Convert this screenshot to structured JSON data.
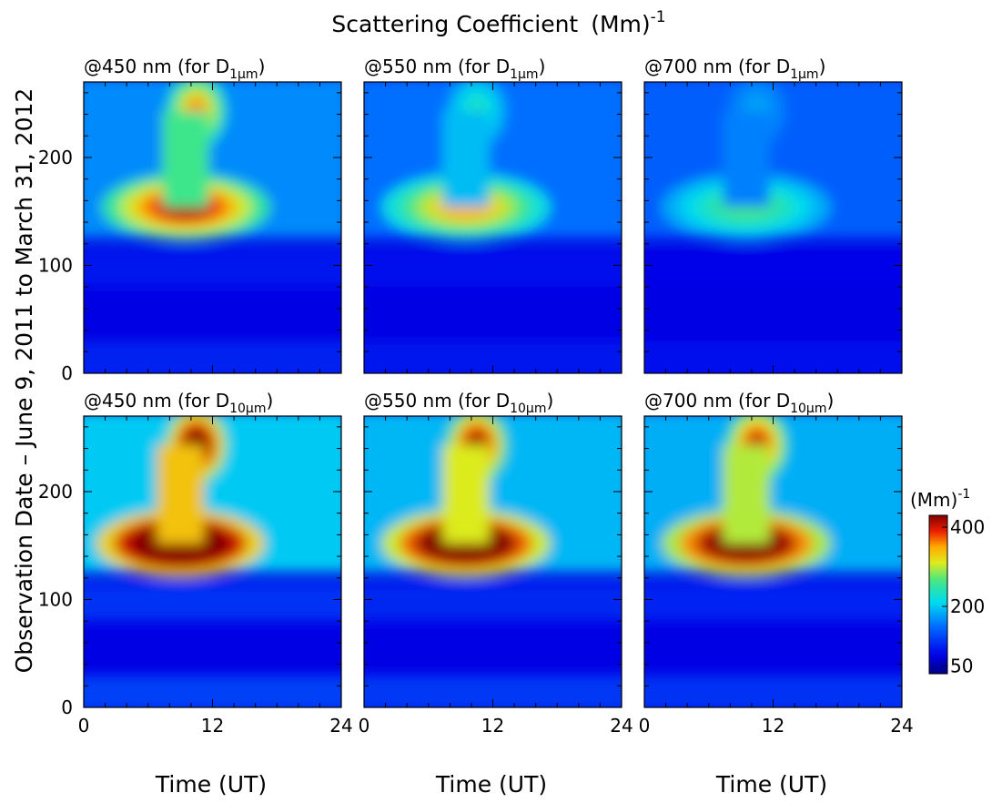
{
  "figure": {
    "title": "Scattering Coefficient",
    "title_unit": "(Mm)",
    "title_unit_sup": "-1",
    "ylabel": "Observation Date  – June 9, 2011 to March 31, 2012",
    "xlabel": "Time (UT)"
  },
  "colorbar": {
    "unit": "(Mm)",
    "unit_sup": "-1",
    "ticks": [
      {
        "value": 400,
        "label": "400"
      },
      {
        "value": 200,
        "label": "200"
      },
      {
        "value": 50,
        "label": "50"
      }
    ],
    "range": [
      30,
      430
    ]
  },
  "chart_data": {
    "type": "heatmap",
    "x": {
      "label": "Time (UT)",
      "range": [
        0,
        24
      ],
      "ticks": [
        0,
        12,
        24
      ],
      "tick_labels_first_col": [
        "0",
        "12",
        "24"
      ],
      "tick_labels_other_cols": [
        "0",
        "12",
        "24"
      ]
    },
    "y": {
      "label": "Observation Date  – June 9, 2011 to March 31, 2012",
      "range": [
        0,
        270
      ],
      "ticks": [
        0,
        100,
        200
      ],
      "tick_labels": [
        "0",
        "100",
        "200"
      ]
    },
    "data_gaps": [
      [
        116,
        124
      ],
      [
        55,
        63
      ]
    ],
    "panels": [
      {
        "row": 0,
        "col": 0,
        "prefix": "@450 nm  (for D",
        "sub": "1μm",
        "suffix": ")",
        "hotspots": [
          {
            "t": 9.5,
            "day": 154,
            "peak": 420
          },
          {
            "t": 10.5,
            "day": 243,
            "peak": 360
          }
        ],
        "background": 165
      },
      {
        "row": 0,
        "col": 1,
        "prefix": "@550 nm  (for D",
        "sub": "1μm",
        "suffix": ")",
        "hotspots": [
          {
            "t": 9.5,
            "day": 154,
            "peak": 350
          },
          {
            "t": 10.5,
            "day": 243,
            "peak": 235
          }
        ],
        "background": 150
      },
      {
        "row": 0,
        "col": 2,
        "prefix": "@700 nm  (for D",
        "sub": "1μm",
        "suffix": ")",
        "hotspots": [
          {
            "t": 9.5,
            "day": 154,
            "peak": 265
          },
          {
            "t": 10.5,
            "day": 243,
            "peak": 180
          }
        ],
        "background": 140
      },
      {
        "row": 1,
        "col": 0,
        "prefix": "@450 nm  (for D",
        "sub": "10μm",
        "suffix": ")",
        "hotspots": [
          {
            "t": 9,
            "day": 152,
            "peak": 560
          },
          {
            "t": 10.5,
            "day": 243,
            "peak": 470
          }
        ],
        "background": 200
      },
      {
        "row": 1,
        "col": 1,
        "prefix": "@550 nm  (for D",
        "sub": "10μm",
        "suffix": ")",
        "hotspots": [
          {
            "t": 9.5,
            "day": 152,
            "peak": 520
          },
          {
            "t": 10.5,
            "day": 243,
            "peak": 430
          }
        ],
        "background": 190
      },
      {
        "row": 1,
        "col": 2,
        "prefix": "@700 nm  (for D",
        "sub": "10μm",
        "suffix": ")",
        "hotspots": [
          {
            "t": 9.5,
            "day": 152,
            "peak": 500
          },
          {
            "t": 10.5,
            "day": 243,
            "peak": 410
          }
        ],
        "background": 185
      }
    ]
  }
}
